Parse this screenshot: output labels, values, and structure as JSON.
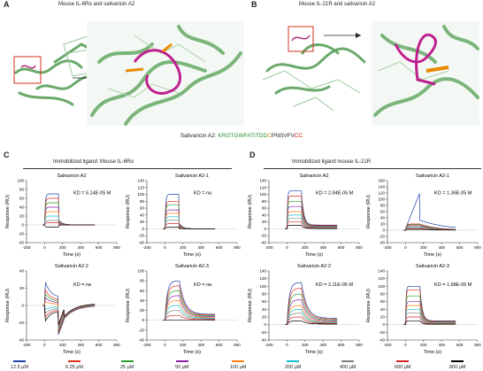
{
  "panels": {
    "A": {
      "label": "A",
      "title": "Mouse IL-6Rα and salivaricin A2"
    },
    "B": {
      "label": "B",
      "title": "Mouse IL-21R and salivaricin A2"
    },
    "C": {
      "label": "C",
      "title": "Immobilized ligand: Mouse IL-6Rα"
    },
    "D": {
      "label": "D",
      "title": "Immobilized ligand mouse IL-21R"
    }
  },
  "sequence": {
    "prefix": "Salivaricin A2: ",
    "residues": [
      {
        "t": "K",
        "c": "#2e8b2e"
      },
      {
        "t": "R",
        "c": "#2e8b2e"
      },
      {
        "t": "GTGWFATITDD",
        "c": "#2e8b2e"
      },
      {
        "t": "C",
        "c": "#e68a00"
      },
      {
        "t": "PNSVFV",
        "c": "#222222"
      },
      {
        "t": "CC",
        "c": "#d01010"
      }
    ]
  },
  "axis": {
    "xlabel": "Time (s)",
    "ylabel": "Response (RU)"
  },
  "legend": {
    "items": [
      {
        "label": "12.5 μM",
        "color": "#1f3ea8"
      },
      {
        "label": "6.25 μM",
        "color": "#e0301e"
      },
      {
        "label": "25 μM",
        "color": "#2a9d2a"
      },
      {
        "label": "50 μM",
        "color": "#8b1fa8"
      },
      {
        "label": "100 μM",
        "color": "#ff7f0e"
      },
      {
        "label": "200 μM",
        "color": "#17becf"
      },
      {
        "label": "400 μM",
        "color": "#7f7f7f"
      },
      {
        "label": "600 μM",
        "color": "#d62728"
      },
      {
        "label": "800 μM",
        "color": "#000000"
      }
    ]
  },
  "chart_data": [
    {
      "type": "line",
      "title": "Salivaricin A2",
      "annotation": "KD = 5.14E-05 M",
      "xlabel": "Time (s)",
      "ylabel": "Response (RU)",
      "xlim": [
        -200,
        800
      ],
      "ylim": [
        -40,
        100
      ],
      "xticks": [
        -200,
        0,
        200,
        400,
        600,
        800
      ],
      "yticks": [
        -40,
        -20,
        0,
        20,
        40,
        60,
        80,
        100
      ],
      "kind": "fast_drop",
      "plateaus": [
        70,
        60,
        50,
        40,
        30,
        20,
        10,
        5,
        -5
      ]
    },
    {
      "type": "line",
      "title": "Salivaricin A2-1",
      "annotation": "KD = na",
      "xlabel": "Time (s)",
      "ylabel": "Response (RU)",
      "xlim": [
        -200,
        800
      ],
      "ylim": [
        -40,
        140
      ],
      "xticks": [
        -200,
        0,
        200,
        400,
        600,
        800
      ],
      "yticks": [
        -40,
        -20,
        0,
        20,
        40,
        60,
        80,
        100,
        120,
        140
      ],
      "kind": "fast_drop",
      "plateaus": [
        100,
        80,
        70,
        55,
        45,
        35,
        25,
        15,
        5
      ]
    },
    {
      "type": "line",
      "title": "Salivaricin A2-2",
      "annotation": "KD = na",
      "xlabel": "Time (s)",
      "ylabel": "Response (RU)",
      "xlim": [
        -200,
        800
      ],
      "ylim": [
        -40,
        40
      ],
      "xticks": [
        -200,
        0,
        200,
        400,
        600,
        800
      ],
      "yticks": [
        -40,
        -20,
        0,
        20,
        40
      ],
      "kind": "negative_dip",
      "plateaus": [
        30,
        20,
        15,
        10,
        5,
        -5,
        -10,
        -15,
        -20
      ]
    },
    {
      "type": "line",
      "title": "Salivaricin A2-3",
      "annotation": "KD = na",
      "xlabel": "Time (s)",
      "ylabel": "Response (RU)",
      "xlim": [
        -200,
        800
      ],
      "ylim": [
        -40,
        100
      ],
      "xticks": [
        -200,
        0,
        200,
        400,
        600,
        800
      ],
      "yticks": [
        -40,
        -20,
        0,
        20,
        40,
        60,
        80,
        100
      ],
      "kind": "rise_decay",
      "plateaus": [
        80,
        70,
        60,
        50,
        40,
        30,
        20,
        10,
        0
      ]
    },
    {
      "type": "line",
      "title": "Salivaricin A2",
      "annotation": "KD = 2.94E-05 M",
      "xlabel": "Time (s)",
      "ylabel": "Response (RU)",
      "xlim": [
        -200,
        800
      ],
      "ylim": [
        -40,
        140
      ],
      "xticks": [
        -200,
        0,
        200,
        400,
        600,
        800
      ],
      "yticks": [
        -40,
        -20,
        0,
        20,
        40,
        60,
        80,
        100,
        120,
        140
      ],
      "kind": "step_decay",
      "plateaus": [
        110,
        95,
        80,
        65,
        50,
        40,
        30,
        20,
        10
      ]
    },
    {
      "type": "line",
      "title": "Salivaricin A2-1",
      "annotation": "KD = 1.36E-05 M",
      "xlabel": "Time (s)",
      "ylabel": "Response (RU)",
      "xlim": [
        -200,
        800
      ],
      "ylim": [
        -40,
        160
      ],
      "xticks": [
        -200,
        0,
        200,
        400,
        600,
        800
      ],
      "yticks": [
        -40,
        -20,
        0,
        20,
        40,
        60,
        80,
        100,
        120,
        140,
        160
      ],
      "kind": "single_rise",
      "plateaus": [
        130,
        20,
        18,
        15,
        12,
        10,
        8,
        5,
        3
      ]
    },
    {
      "type": "line",
      "title": "Salivaricin A2-2",
      "annotation": "KD = 2.11E-05 M",
      "xlabel": "Time (s)",
      "ylabel": "Response (RU)",
      "xlim": [
        -200,
        800
      ],
      "ylim": [
        -40,
        140
      ],
      "xticks": [
        -200,
        0,
        200,
        400,
        600,
        800
      ],
      "yticks": [
        -40,
        -20,
        0,
        20,
        40,
        60,
        80,
        100,
        120,
        140
      ],
      "kind": "rise_decay",
      "plateaus": [
        110,
        95,
        80,
        65,
        50,
        40,
        30,
        20,
        10
      ]
    },
    {
      "type": "line",
      "title": "Salivaricin A2-3",
      "annotation": "KD = 1.68E-05 M",
      "xlabel": "Time (s)",
      "ylabel": "Response (RU)",
      "xlim": [
        -200,
        800
      ],
      "ylim": [
        -40,
        140
      ],
      "xticks": [
        -200,
        0,
        200,
        400,
        600,
        800
      ],
      "yticks": [
        -40,
        -20,
        0,
        20,
        40,
        60,
        80,
        100,
        120,
        140
      ],
      "kind": "step_decay",
      "plateaus": [
        100,
        90,
        75,
        60,
        50,
        40,
        30,
        20,
        10
      ]
    }
  ]
}
